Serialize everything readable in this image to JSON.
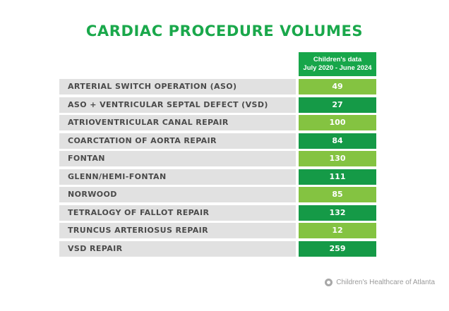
{
  "chart_data": {
    "type": "table",
    "title": "CARDIAC PROCEDURE VOLUMES",
    "column_header": [
      "Children's data",
      "July 2020 - June 2024"
    ],
    "categories": [
      "ARTERIAL SWITCH OPERATION (ASO)",
      "ASO + VENTRICULAR SEPTAL DEFECT (VSD)",
      "ATRIOVENTRICULAR CANAL REPAIR",
      "COARCTATION OF AORTA REPAIR",
      "FONTAN",
      "GLENN/HEMI-FONTAN",
      "NORWOOD",
      "TETRALOGY OF FALLOT REPAIR",
      "TRUNCUS ARTERIOSUS REPAIR",
      "VSD REPAIR"
    ],
    "values": [
      49,
      27,
      100,
      84,
      130,
      111,
      85,
      132,
      12,
      259
    ]
  },
  "footer": {
    "text": "Children's Healthcare of Atlanta",
    "icon": "childrens-logo-icon"
  },
  "colors": {
    "title": "#1aa84b",
    "header_bg": "#17a64a",
    "light_green": "#84c341",
    "dark_green": "#159a47",
    "label_bg": "#e1e1e1"
  }
}
